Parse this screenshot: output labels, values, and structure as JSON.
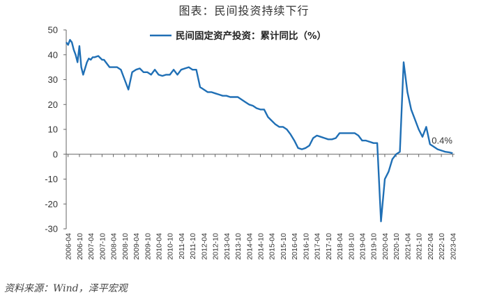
{
  "header": {
    "title": "图表：民间投资持续下行"
  },
  "footer": {
    "source": "资料来源：Wind，泽平宏观"
  },
  "chart_data": {
    "type": "line",
    "title": "图表：民间投资持续下行",
    "xlabel": "",
    "ylabel": "",
    "ylim": [
      -30,
      50
    ],
    "yticks": [
      50,
      40,
      30,
      20,
      10,
      0,
      -10,
      -20,
      -30
    ],
    "xticks": [
      "2006-04",
      "2006-10",
      "2007-04",
      "2007-10",
      "2008-04",
      "2008-10",
      "2009-04",
      "2009-10",
      "2010-04",
      "2010-10",
      "2011-04",
      "2011-10",
      "2012-04",
      "2012-10",
      "2013-04",
      "2013-10",
      "2014-04",
      "2014-10",
      "2015-04",
      "2015-10",
      "2016-04",
      "2016-10",
      "2017-04",
      "2017-10",
      "2018-04",
      "2018-10",
      "2019-04",
      "2019-10",
      "2020-04",
      "2020-10",
      "2021-04",
      "2021-10",
      "2022-04",
      "2022-10",
      "2023-04"
    ],
    "grid": false,
    "legend_position": "top-center",
    "color": "#1f6fb5",
    "series": [
      {
        "name": "民间固定资产投资：累计同比（%）",
        "x": [
          "2006-03",
          "2006-04",
          "2006-05",
          "2006-06",
          "2006-07",
          "2006-08",
          "2006-09",
          "2006-10",
          "2006-11",
          "2006-12",
          "2007-02",
          "2007-03",
          "2007-04",
          "2007-05",
          "2007-06",
          "2007-08",
          "2007-10",
          "2007-11",
          "2007-12",
          "2008-02",
          "2008-04",
          "2008-06",
          "2008-08",
          "2008-10",
          "2008-12",
          "2009-02",
          "2009-04",
          "2009-06",
          "2009-08",
          "2009-10",
          "2009-12",
          "2010-02",
          "2010-04",
          "2010-06",
          "2010-08",
          "2010-10",
          "2010-12",
          "2011-02",
          "2011-04",
          "2011-06",
          "2011-08",
          "2011-10",
          "2011-12",
          "2012-02",
          "2012-04",
          "2012-06",
          "2012-08",
          "2012-10",
          "2012-12",
          "2013-02",
          "2013-04",
          "2013-06",
          "2013-08",
          "2013-10",
          "2013-12",
          "2014-02",
          "2014-04",
          "2014-06",
          "2014-08",
          "2014-10",
          "2014-12",
          "2015-02",
          "2015-04",
          "2015-06",
          "2015-08",
          "2015-10",
          "2015-12",
          "2016-02",
          "2016-04",
          "2016-06",
          "2016-08",
          "2016-10",
          "2016-12",
          "2017-02",
          "2017-04",
          "2017-06",
          "2017-08",
          "2017-10",
          "2017-12",
          "2018-02",
          "2018-04",
          "2018-06",
          "2018-08",
          "2018-10",
          "2018-12",
          "2019-02",
          "2019-04",
          "2019-06",
          "2019-08",
          "2019-10",
          "2019-12",
          "2020-02",
          "2020-04",
          "2020-06",
          "2020-08",
          "2020-10",
          "2020-12",
          "2021-02",
          "2021-04",
          "2021-06",
          "2021-08",
          "2021-10",
          "2021-12",
          "2022-02",
          "2022-04",
          "2022-06",
          "2022-08",
          "2022-10",
          "2022-12",
          "2023-02",
          "2023-04"
        ],
        "values": [
          45,
          44,
          46,
          45,
          42,
          40,
          37,
          43.5,
          35,
          32,
          37,
          38.5,
          38,
          39,
          39,
          39.5,
          38,
          38,
          37,
          35,
          35,
          35,
          34,
          30,
          26,
          33,
          34,
          34.5,
          33,
          33,
          32,
          34,
          32,
          31.5,
          32,
          32,
          34,
          32,
          34,
          34.5,
          35,
          34,
          34,
          27,
          26,
          25,
          25,
          24.5,
          24,
          23.5,
          23.5,
          23,
          23,
          23,
          22,
          21,
          20,
          19.5,
          18.5,
          18,
          18,
          15,
          13.5,
          12,
          11,
          11,
          10,
          8,
          5.5,
          2.5,
          2,
          2.5,
          3.5,
          6.5,
          7.5,
          7,
          6.5,
          6,
          6,
          6.5,
          8.5,
          8.5,
          8.5,
          8.5,
          8.5,
          7.5,
          5.5,
          5.5,
          5,
          4.5,
          4.5,
          -27,
          -10,
          -7,
          -2,
          0,
          1,
          37,
          25,
          18,
          14,
          10,
          7,
          11,
          4,
          3,
          2,
          1.5,
          1,
          0.8,
          0.4
        ]
      }
    ],
    "annotations": [
      {
        "text": "0.4%",
        "x": "2023-04",
        "y": 0.4
      }
    ]
  }
}
